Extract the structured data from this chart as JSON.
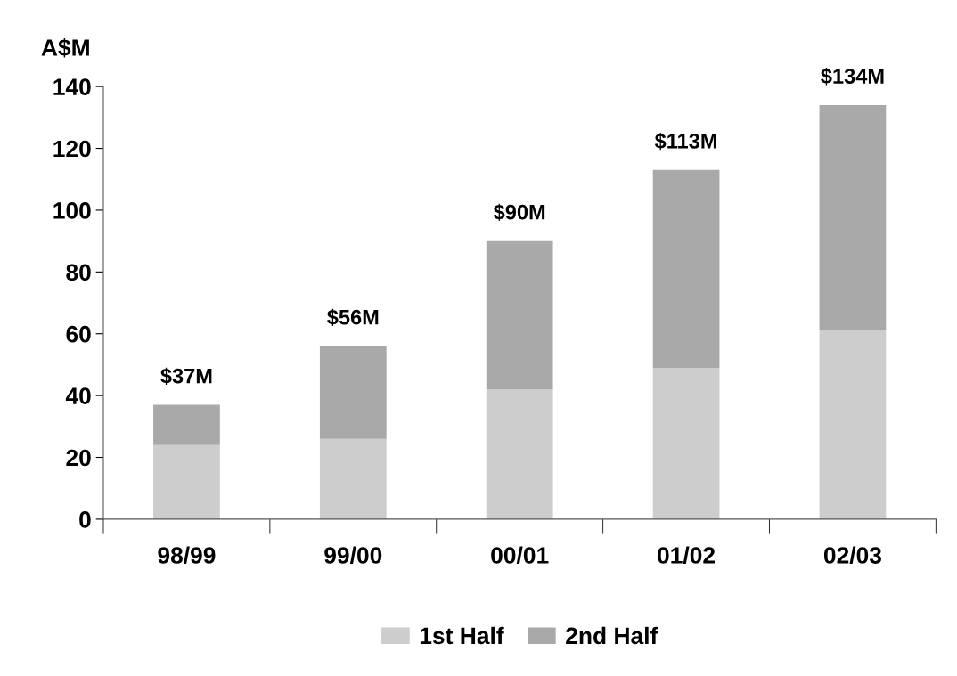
{
  "chart_data": {
    "type": "bar",
    "ylabel": "A$M",
    "stacked": true,
    "categories": [
      "98/99",
      "99/00",
      "00/01",
      "01/02",
      "02/03"
    ],
    "series": [
      {
        "name": "1st Half",
        "color": "#cdcdcd",
        "values": [
          24,
          26,
          42,
          49,
          61
        ]
      },
      {
        "name": "2nd Half",
        "color": "#a9a9a9",
        "values": [
          13,
          30,
          48,
          64,
          73
        ]
      }
    ],
    "totals": [
      "$37M",
      "$56M",
      "$90M",
      "$113M",
      "$134M"
    ],
    "ylim": [
      0,
      140
    ],
    "yticks": [
      0,
      20,
      40,
      60,
      80,
      100,
      120,
      140
    ],
    "grid": false,
    "legend": "bottom"
  }
}
